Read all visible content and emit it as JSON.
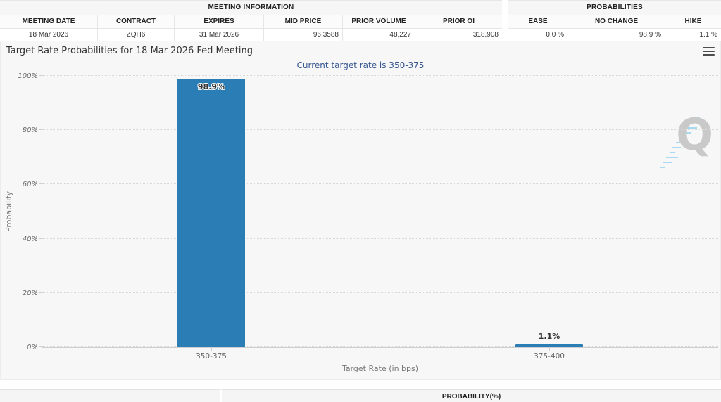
{
  "meeting_information": {
    "title": "MEETING INFORMATION",
    "columns": [
      "MEETING DATE",
      "CONTRACT",
      "EXPIRES",
      "MID PRICE",
      "PRIOR VOLUME",
      "PRIOR OI"
    ],
    "values": [
      "18 Mar 2026",
      "ZQH6",
      "31 Mar 2026",
      "96.3588",
      "48,227",
      "318,908"
    ]
  },
  "probabilities_panel": {
    "title": "PROBABILITIES",
    "columns": [
      "EASE",
      "NO CHANGE",
      "HIKE"
    ],
    "values": [
      "0.0 %",
      "98.9 %",
      "1.1 %"
    ]
  },
  "chart_data": {
    "type": "bar",
    "title": "Target Rate Probabilities for 18 Mar 2026 Fed Meeting",
    "subtitle": "Current target rate is 350-375",
    "categories": [
      "350-375",
      "375-400"
    ],
    "values": [
      98.9,
      1.1
    ],
    "bar_labels": [
      "98.9%",
      "1.1%"
    ],
    "xlabel": "Target Rate (in bps)",
    "ylabel": "Probability",
    "ylim": [
      0,
      100
    ],
    "yticks": [
      "0%",
      "20%",
      "40%",
      "60%",
      "80%",
      "100%"
    ],
    "grid": "horizontal dotted",
    "legend": "none",
    "bar_color": "#2a7eb5"
  },
  "watermark": {
    "letter": "Q",
    "dash_color": "#a9d9ef"
  },
  "bottom_table": {
    "probability_header": "PROBABILITY(%)"
  }
}
